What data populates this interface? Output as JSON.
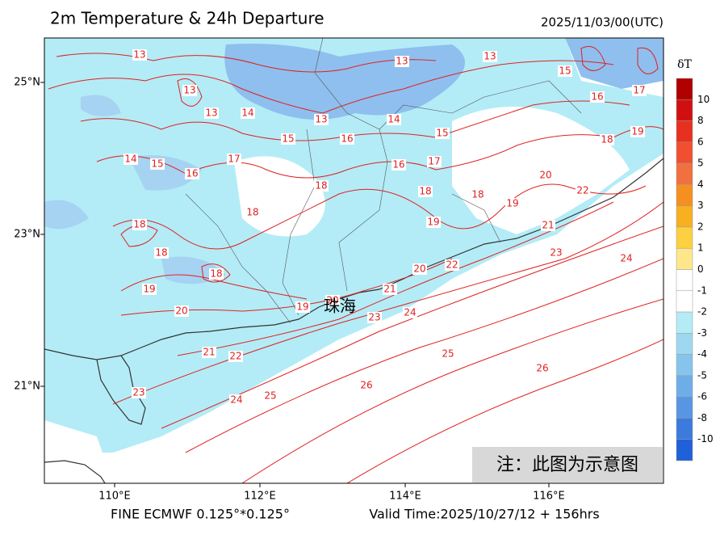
{
  "header": {
    "title": "2m Temperature & 24h Departure",
    "datetime": "2025/11/03/00(UTC)"
  },
  "map": {
    "lat_labels": [
      "25°N",
      "23°N",
      "21°N"
    ],
    "lon_labels": [
      "110°E",
      "112°E",
      "114°E",
      "116°E"
    ],
    "city": "珠海",
    "contour_labels": [
      13,
      13,
      13,
      14,
      13,
      13,
      13,
      15,
      16,
      17,
      16,
      15,
      14,
      15,
      17,
      16,
      15,
      14,
      16,
      17,
      18,
      18,
      18,
      18,
      18,
      18,
      18,
      18,
      19,
      20,
      22,
      19,
      21,
      19,
      23,
      24,
      22,
      20,
      21,
      20,
      19,
      19,
      20,
      21,
      22,
      23,
      24,
      25,
      26,
      26,
      23,
      24,
      25
    ],
    "note": "注：此图为示意图"
  },
  "colorbar": {
    "title": "δT",
    "ticks": [
      10,
      8,
      6,
      5,
      4,
      3,
      2,
      1,
      0,
      -1,
      -2,
      -3,
      -4,
      -5,
      -6,
      -8,
      -10
    ],
    "colors": [
      "#b00000",
      "#d01010",
      "#e83020",
      "#f05030",
      "#f07040",
      "#f59020",
      "#f8b020",
      "#fcd040",
      "#fde78a",
      "#ffffff",
      "#ffffff",
      "#b4ecf5",
      "#9ed8f0",
      "#86c4ec",
      "#6eaee8",
      "#5896e4",
      "#3c7ade",
      "#2060d8"
    ]
  },
  "footer": {
    "left": "FINE ECMWF 0.125°*0.125°",
    "right": "Valid Time:2025/10/27/12 + 156hrs"
  }
}
